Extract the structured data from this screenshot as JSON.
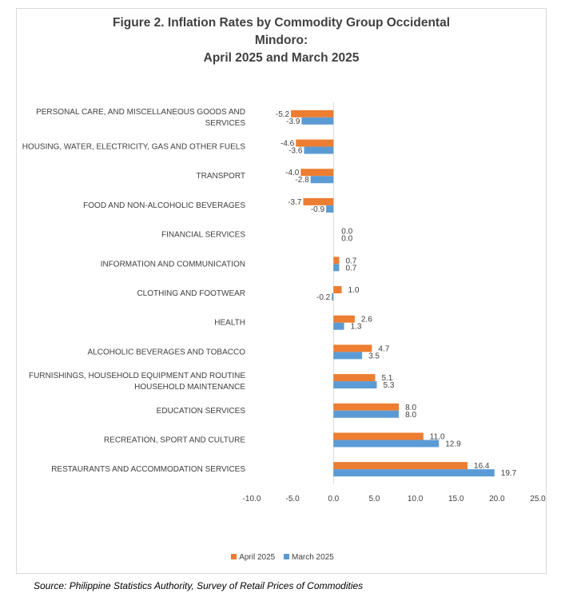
{
  "title_lines": [
    "Figure 2. Inflation Rates by Commodity Group Occidental",
    "Mindoro:",
    "April 2025 and March 2025"
  ],
  "source": "Source: Philippine Statistics Authority, Survey of Retail Prices of Commodities",
  "colors": {
    "april": "#ed7d31",
    "march": "#5b9bd5",
    "axis": "#d9d9d9"
  },
  "chart_data": {
    "type": "bar",
    "orientation": "horizontal",
    "title": "Figure 2. Inflation Rates by Commodity Group Occidental Mindoro: April 2025 and March 2025",
    "categories": [
      [
        "PERSONAL CARE, AND MISCELLANEOUS GOODS AND",
        "SERVICES"
      ],
      [
        "HOUSING, WATER, ELECTRICITY, GAS AND OTHER FUELS"
      ],
      [
        "TRANSPORT"
      ],
      [
        "FOOD AND NON-ALCOHOLIC BEVERAGES"
      ],
      [
        "FINANCIAL SERVICES"
      ],
      [
        "INFORMATION AND COMMUNICATION"
      ],
      [
        "CLOTHING AND FOOTWEAR"
      ],
      [
        "HEALTH"
      ],
      [
        "ALCOHOLIC BEVERAGES AND TOBACCO"
      ],
      [
        "FURNISHINGS, HOUSEHOLD EQUIPMENT AND ROUTINE",
        "HOUSEHOLD MAINTENANCE"
      ],
      [
        "EDUCATION SERVICES"
      ],
      [
        "RECREATION, SPORT AND CULTURE"
      ],
      [
        "RESTAURANTS AND ACCOMMODATION SERVICES"
      ]
    ],
    "series": [
      {
        "name": "April 2025",
        "color": "#ed7d31",
        "values": [
          -5.2,
          -4.6,
          -4.0,
          -3.7,
          0.0,
          0.7,
          1.0,
          2.6,
          4.7,
          5.1,
          8.0,
          11.0,
          16.4
        ]
      },
      {
        "name": "March 2025",
        "color": "#5b9bd5",
        "values": [
          -3.9,
          -3.6,
          -2.8,
          -0.9,
          0.0,
          0.7,
          -0.2,
          1.3,
          3.5,
          5.3,
          8.0,
          12.9,
          19.7
        ]
      }
    ],
    "xlim": [
      -10,
      25
    ],
    "xticks": [
      -10,
      -5,
      0,
      5,
      10,
      15,
      20,
      25
    ],
    "tick_labels": [
      "-10.0",
      "-5.0",
      "0.0",
      "5.0",
      "10.0",
      "15.0",
      "20.0",
      "25.0"
    ],
    "value_labels": [
      [
        "-5.2",
        "-4.6",
        "-4.0",
        "-3.7",
        "0.0",
        "0.7",
        "1.0",
        "2.6",
        "4.7",
        "5.1",
        "8.0",
        "11.0",
        "16.4"
      ],
      [
        "-3.9",
        "-3.6",
        "-2.8",
        "-0.9",
        "0.0",
        "0.7",
        "-0.2",
        "1.3",
        "3.5",
        "5.3",
        "8.0",
        "12.9",
        "19.7"
      ]
    ],
    "legend_position": "bottom",
    "grid": false
  }
}
